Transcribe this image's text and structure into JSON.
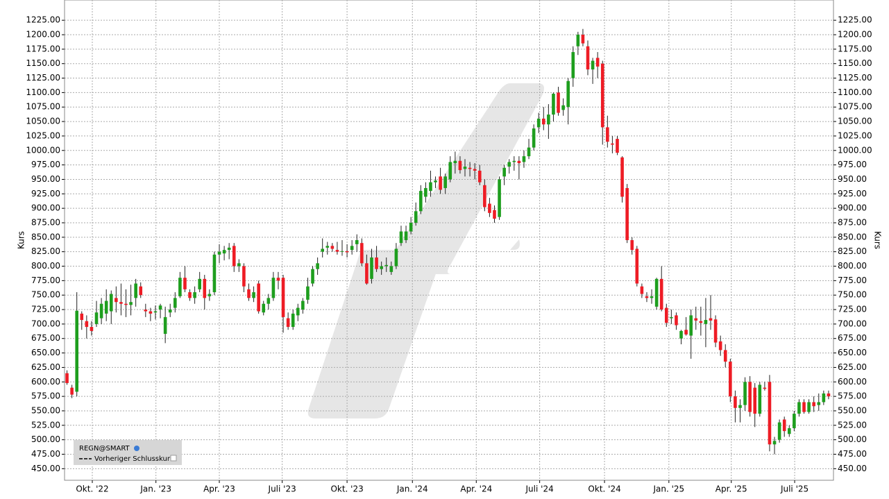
{
  "chart_data": {
    "type": "candlestick",
    "ylabel": "Kurs",
    "legend": {
      "symbol": "REGN@SMART",
      "items": [
        "Vorheriger Schlusskurs"
      ]
    },
    "up_color": "#1e9e1e",
    "down_color": "#ee1c25",
    "grid": true,
    "ylim": [
      430,
      1260
    ],
    "xlim": [
      -0.5,
      156
    ],
    "yticks": [
      {
        "value": 450,
        "label": "450.00"
      },
      {
        "value": 475,
        "label": "475.00"
      },
      {
        "value": 500,
        "label": "500.00"
      },
      {
        "value": 525,
        "label": "525.00"
      },
      {
        "value": 550,
        "label": "550.00"
      },
      {
        "value": 575,
        "label": "575.00"
      },
      {
        "value": 600,
        "label": "600.00"
      },
      {
        "value": 625,
        "label": "625.00"
      },
      {
        "value": 650,
        "label": "650.00"
      },
      {
        "value": 675,
        "label": "675.00"
      },
      {
        "value": 700,
        "label": "700.00"
      },
      {
        "value": 725,
        "label": "725.00"
      },
      {
        "value": 750,
        "label": "750.00"
      },
      {
        "value": 775,
        "label": "775.00"
      },
      {
        "value": 800,
        "label": "800.00"
      },
      {
        "value": 825,
        "label": "825.00"
      },
      {
        "value": 850,
        "label": "850.00"
      },
      {
        "value": 875,
        "label": "875.00"
      },
      {
        "value": 900,
        "label": "900.00"
      },
      {
        "value": 925,
        "label": "925.00"
      },
      {
        "value": 950,
        "label": "950.00"
      },
      {
        "value": 975,
        "label": "975.00"
      },
      {
        "value": 1000,
        "label": "1000.00"
      },
      {
        "value": 1025,
        "label": "1025.00"
      },
      {
        "value": 1050,
        "label": "1050.00"
      },
      {
        "value": 1075,
        "label": "1075.00"
      },
      {
        "value": 1100,
        "label": "1100.00"
      },
      {
        "value": 1125,
        "label": "1125.00"
      },
      {
        "value": 1150,
        "label": "1150.00"
      },
      {
        "value": 1175,
        "label": "1175.00"
      },
      {
        "value": 1200,
        "label": "1200.00"
      },
      {
        "value": 1225,
        "label": "1225.00"
      }
    ],
    "xticks": [
      {
        "value": 5.15,
        "label": "Okt. '22"
      },
      {
        "value": 18.1,
        "label": "Jan. '23"
      },
      {
        "value": 31,
        "label": "Apr. '23"
      },
      {
        "value": 43.8,
        "label": "Juli '23"
      },
      {
        "value": 57,
        "label": "Okt. '23"
      },
      {
        "value": 70.3,
        "label": "Jan. '24"
      },
      {
        "value": 83.3,
        "label": "Apr. '24"
      },
      {
        "value": 96.2,
        "label": "Juli '24"
      },
      {
        "value": 109.4,
        "label": "Okt. '24"
      },
      {
        "value": 122.5,
        "label": "Jan. '25"
      },
      {
        "value": 135.2,
        "label": "Apr. '25"
      },
      {
        "value": 148.1,
        "label": "Juli '25"
      }
    ],
    "open": [
      615,
      590,
      583,
      718,
      705,
      695,
      700,
      710,
      718,
      722,
      745,
      738,
      735,
      733,
      745,
      765,
      725,
      722,
      720,
      725,
      683,
      720,
      728,
      748,
      780,
      755,
      745,
      760,
      778,
      748,
      755,
      820,
      822,
      828,
      835,
      800,
      800,
      760,
      745,
      770,
      720,
      735,
      745,
      780,
      780,
      710,
      695,
      715,
      725,
      742,
      770,
      795,
      825,
      832,
      835,
      828,
      825,
      826,
      828,
      838,
      840,
      805,
      778,
      815,
      795,
      800,
      790,
      800,
      840,
      845,
      860,
      875,
      895,
      920,
      930,
      945,
      955,
      935,
      950,
      978,
      982,
      968,
      970,
      968,
      965,
      940,
      908,
      897,
      885,
      955,
      972,
      980,
      982,
      980,
      990,
      1005,
      1040,
      1055,
      1045,
      1062,
      1100,
      1070,
      1075,
      1125,
      1180,
      1200,
      1180,
      1140,
      1160,
      1150,
      1040,
      1012,
      1020,
      988,
      935,
      845,
      830,
      765,
      748,
      745,
      730,
      778,
      728,
      710,
      715,
      675,
      690,
      680,
      710,
      705,
      700,
      710,
      708,
      670,
      655,
      635,
      575,
      555,
      560,
      600,
      590,
      545,
      590,
      600,
      492,
      500,
      535,
      510,
      520,
      545,
      565,
      548,
      565,
      560,
      565,
      580
    ],
    "high": [
      620,
      595,
      755,
      722,
      715,
      705,
      740,
      745,
      760,
      758,
      765,
      770,
      760,
      768,
      778,
      772,
      735,
      728,
      732,
      735,
      730,
      735,
      755,
      790,
      800,
      760,
      765,
      790,
      785,
      760,
      825,
      838,
      835,
      840,
      840,
      812,
      805,
      770,
      765,
      775,
      740,
      752,
      790,
      790,
      785,
      720,
      725,
      735,
      745,
      780,
      800,
      815,
      848,
      842,
      840,
      842,
      845,
      838,
      845,
      855,
      848,
      820,
      830,
      835,
      808,
      815,
      808,
      840,
      870,
      870,
      885,
      910,
      940,
      945,
      965,
      955,
      970,
      960,
      990,
      998,
      990,
      985,
      980,
      978,
      975,
      950,
      918,
      905,
      955,
      975,
      985,
      990,
      990,
      1000,
      1020,
      1045,
      1065,
      1075,
      1080,
      1100,
      1110,
      1090,
      1125,
      1180,
      1205,
      1210,
      1190,
      1160,
      1170,
      1155,
      1060,
      1025,
      1025,
      990,
      942,
      850,
      835,
      770,
      755,
      760,
      780,
      800,
      735,
      725,
      720,
      690,
      712,
      725,
      730,
      730,
      745,
      750,
      715,
      680,
      665,
      640,
      585,
      570,
      608,
      610,
      598,
      600,
      600,
      612,
      505,
      535,
      540,
      525,
      550,
      570,
      570,
      570,
      575,
      580,
      585,
      585
    ],
    "low": [
      595,
      572,
      575,
      690,
      675,
      680,
      695,
      700,
      705,
      700,
      720,
      715,
      712,
      715,
      730,
      745,
      712,
      705,
      708,
      710,
      667,
      712,
      720,
      745,
      755,
      740,
      735,
      755,
      725,
      740,
      750,
      805,
      810,
      812,
      790,
      790,
      755,
      740,
      738,
      718,
      715,
      725,
      740,
      760,
      685,
      690,
      690,
      705,
      718,
      735,
      765,
      785,
      815,
      820,
      825,
      820,
      818,
      815,
      820,
      825,
      800,
      768,
      770,
      790,
      785,
      790,
      785,
      795,
      835,
      840,
      855,
      870,
      890,
      910,
      920,
      935,
      925,
      925,
      945,
      960,
      960,
      955,
      955,
      950,
      940,
      895,
      885,
      875,
      880,
      940,
      960,
      965,
      950,
      970,
      985,
      1000,
      1030,
      1035,
      1020,
      1050,
      1060,
      1060,
      1045,
      1110,
      1165,
      1180,
      1130,
      1115,
      1125,
      1010,
      1005,
      995,
      992,
      910,
      840,
      820,
      765,
      745,
      738,
      735,
      725,
      722,
      695,
      700,
      690,
      665,
      680,
      640,
      690,
      680,
      660,
      690,
      660,
      645,
      625,
      565,
      530,
      530,
      550,
      540,
      522,
      540,
      585,
      480,
      475,
      495,
      505,
      505,
      515,
      540,
      545,
      545,
      548,
      550,
      560,
      570
    ],
    "close": [
      598,
      578,
      723,
      707,
      695,
      688,
      720,
      735,
      740,
      752,
      738,
      735,
      733,
      738,
      770,
      750,
      722,
      718,
      722,
      732,
      712,
      725,
      745,
      780,
      760,
      745,
      755,
      778,
      745,
      752,
      820,
      825,
      828,
      832,
      800,
      805,
      765,
      745,
      755,
      722,
      735,
      745,
      780,
      775,
      712,
      695,
      718,
      728,
      740,
      765,
      795,
      805,
      830,
      835,
      830,
      825,
      826,
      824,
      835,
      845,
      805,
      770,
      815,
      795,
      800,
      802,
      800,
      830,
      860,
      860,
      875,
      895,
      930,
      935,
      945,
      948,
      932,
      955,
      980,
      982,
      966,
      972,
      968,
      965,
      945,
      902,
      892,
      882,
      950,
      970,
      980,
      982,
      978,
      990,
      1005,
      1038,
      1055,
      1045,
      1062,
      1098,
      1065,
      1078,
      1120,
      1170,
      1200,
      1185,
      1140,
      1155,
      1145,
      1040,
      1015,
      1010,
      996,
      920,
      845,
      828,
      770,
      752,
      745,
      748,
      778,
      725,
      702,
      712,
      698,
      688,
      682,
      715,
      706,
      702,
      707,
      706,
      668,
      655,
      635,
      575,
      555,
      560,
      600,
      548,
      545,
      595,
      588,
      492,
      498,
      530,
      515,
      520,
      545,
      565,
      548,
      565,
      558,
      565,
      580,
      575
    ]
  }
}
